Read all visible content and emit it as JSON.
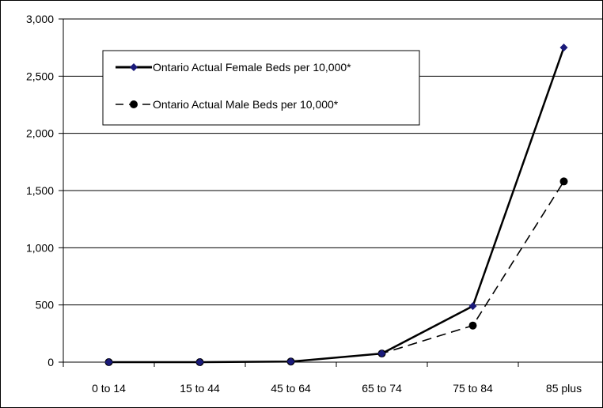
{
  "chart_data": {
    "type": "line",
    "categories": [
      "0 to 14",
      "15 to 44",
      "45 to 64",
      "65 to 74",
      "75 to 84",
      "85 plus"
    ],
    "series": [
      {
        "name": "Ontario Actual Female Beds per 10,000*",
        "values": [
          0,
          0,
          5,
          75,
          490,
          2750
        ],
        "color": "#000000",
        "line_style": "solid",
        "marker": "diamond",
        "marker_color": "#1a1a7a"
      },
      {
        "name": "Ontario Actual Male Beds per 10,000*",
        "values": [
          0,
          0,
          5,
          75,
          320,
          1580
        ],
        "color": "#000000",
        "line_style": "dashed",
        "marker": "circle",
        "marker_color": "#000000"
      }
    ],
    "y_ticks": [
      "0",
      "500",
      "1,000",
      "1,500",
      "2,000",
      "2,500",
      "3,000"
    ],
    "y_tick_values": [
      0,
      500,
      1000,
      1500,
      2000,
      2500,
      3000
    ],
    "ylim": [
      0,
      3000
    ],
    "grid": true,
    "legend_position": "top-left"
  }
}
